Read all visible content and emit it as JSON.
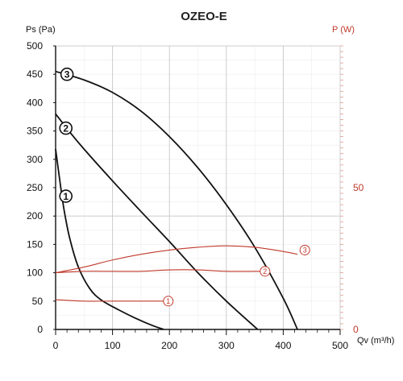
{
  "chart_data": {
    "type": "line",
    "title": "OZEO-E",
    "xlabel": "Qv (m³/h)",
    "ylabel": "Ps (Pa)",
    "ylabel_right": "P (W)",
    "xlim": [
      0,
      500
    ],
    "ylim": [
      0,
      500
    ],
    "y2lim": [
      0,
      100
    ],
    "x_ticks": [
      "0",
      "100",
      "200",
      "300",
      "400",
      "500"
    ],
    "y_ticks": [
      "0",
      "50",
      "100",
      "150",
      "200",
      "250",
      "300",
      "350",
      "400",
      "450",
      "500"
    ],
    "y2_ticks": [
      "0",
      "50"
    ],
    "grid": true,
    "pressure_series": [
      {
        "name": "3",
        "x": [
          0,
          50,
          100,
          150,
          200,
          250,
          300,
          350,
          400,
          425
        ],
        "y": [
          455,
          440,
          418,
          385,
          340,
          285,
          220,
          145,
          55,
          0
        ]
      },
      {
        "name": "2",
        "x": [
          0,
          25,
          50,
          100,
          150,
          200,
          250,
          300,
          355
        ],
        "y": [
          380,
          348,
          318,
          262,
          208,
          155,
          100,
          50,
          0
        ]
      },
      {
        "name": "1",
        "x": [
          0,
          8,
          15,
          25,
          40,
          60,
          80,
          110,
          140,
          170,
          190
        ],
        "y": [
          318,
          258,
          210,
          160,
          110,
          72,
          52,
          35,
          20,
          7,
          0
        ]
      }
    ],
    "power_series": [
      {
        "name": "3",
        "x": [
          0,
          50,
          100,
          150,
          200,
          250,
          300,
          350,
          400,
          425
        ],
        "y": [
          20,
          22,
          24.5,
          26.5,
          28,
          29,
          29.5,
          29,
          27.5,
          26.5
        ]
      },
      {
        "name": "2",
        "x": [
          0,
          50,
          100,
          150,
          200,
          250,
          300,
          350,
          360
        ],
        "y": [
          20,
          20.5,
          20.5,
          20.5,
          21,
          21,
          20.5,
          20.5,
          20.5
        ]
      },
      {
        "name": "1",
        "x": [
          0,
          50,
          100,
          150,
          190
        ],
        "y": [
          10.5,
          10,
          10,
          10,
          10
        ]
      }
    ],
    "pressure_markers": [
      {
        "label": "3",
        "x": 20,
        "y": 450
      },
      {
        "label": "2",
        "x": 18,
        "y": 355
      },
      {
        "label": "1",
        "x": 18,
        "y": 235
      }
    ],
    "power_markers": [
      {
        "label": "3",
        "x": 438,
        "y": 28
      },
      {
        "label": "2",
        "x": 368,
        "y": 20.5
      },
      {
        "label": "1",
        "x": 198,
        "y": 10
      }
    ],
    "colors": {
      "pressure": "#111111",
      "power": "#c0392b",
      "grid": "#c8c8c8"
    }
  }
}
